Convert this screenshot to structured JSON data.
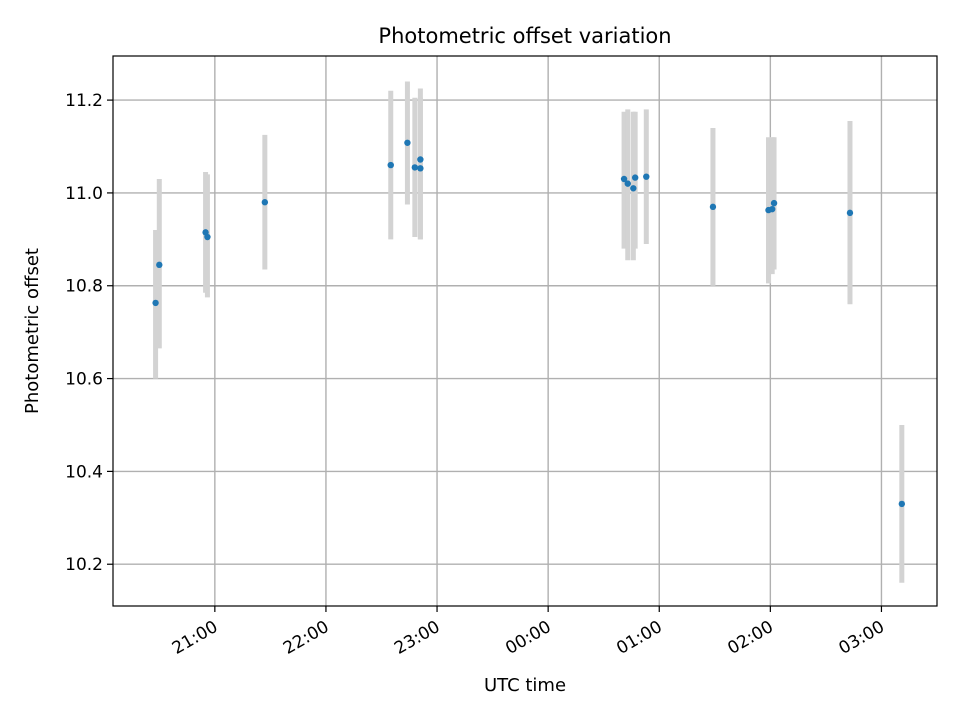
{
  "chart_data": {
    "type": "scatter",
    "title": "Photometric offset variation",
    "xlabel": "UTC time",
    "ylabel": "Photometric offset",
    "x_axis_type": "time",
    "xlim": [
      "20:05",
      "03:30"
    ],
    "ylim": [
      10.11,
      11.295
    ],
    "x_ticks": [
      "21:00",
      "22:00",
      "23:00",
      "00:00",
      "01:00",
      "02:00",
      "03:00"
    ],
    "y_ticks": [
      10.2,
      10.4,
      10.6,
      10.8,
      11.0,
      11.2
    ],
    "grid": true,
    "marker_color": "#1f77b4",
    "errorbar_color": "#d3d3d3",
    "points": [
      {
        "time": "20:28",
        "value": 10.763,
        "err_low": 10.6,
        "err_high": 10.92
      },
      {
        "time": "20:30",
        "value": 10.845,
        "err_low": 10.665,
        "err_high": 11.03
      },
      {
        "time": "20:55",
        "value": 10.915,
        "err_low": 10.785,
        "err_high": 11.045
      },
      {
        "time": "20:56",
        "value": 10.905,
        "err_low": 10.775,
        "err_high": 11.04
      },
      {
        "time": "21:27",
        "value": 10.98,
        "err_low": 10.835,
        "err_high": 11.125
      },
      {
        "time": "22:35",
        "value": 11.06,
        "err_low": 10.9,
        "err_high": 11.22
      },
      {
        "time": "22:44",
        "value": 11.108,
        "err_low": 10.975,
        "err_high": 11.24
      },
      {
        "time": "22:48",
        "value": 11.055,
        "err_low": 10.905,
        "err_high": 11.205
      },
      {
        "time": "22:51",
        "value": 11.072,
        "err_low": 10.9,
        "err_high": 11.225
      },
      {
        "time": "22:51",
        "value": 11.053,
        "err_low": 10.9,
        "err_high": 11.205
      },
      {
        "time": "00:41",
        "value": 11.03,
        "err_low": 10.88,
        "err_high": 11.175
      },
      {
        "time": "00:43",
        "value": 11.02,
        "err_low": 10.855,
        "err_high": 11.18
      },
      {
        "time": "00:46",
        "value": 11.01,
        "err_low": 10.855,
        "err_high": 11.175
      },
      {
        "time": "00:47",
        "value": 11.033,
        "err_low": 10.88,
        "err_high": 11.175
      },
      {
        "time": "00:53",
        "value": 11.035,
        "err_low": 10.89,
        "err_high": 11.18
      },
      {
        "time": "01:29",
        "value": 10.97,
        "err_low": 10.8,
        "err_high": 11.14
      },
      {
        "time": "01:59",
        "value": 10.963,
        "err_low": 10.805,
        "err_high": 11.12
      },
      {
        "time": "02:01",
        "value": 10.965,
        "err_low": 10.825,
        "err_high": 11.12
      },
      {
        "time": "02:02",
        "value": 10.978,
        "err_low": 10.835,
        "err_high": 11.12
      },
      {
        "time": "02:43",
        "value": 10.957,
        "err_low": 10.76,
        "err_high": 11.155
      },
      {
        "time": "03:11",
        "value": 10.33,
        "err_low": 10.16,
        "err_high": 10.5
      }
    ]
  }
}
